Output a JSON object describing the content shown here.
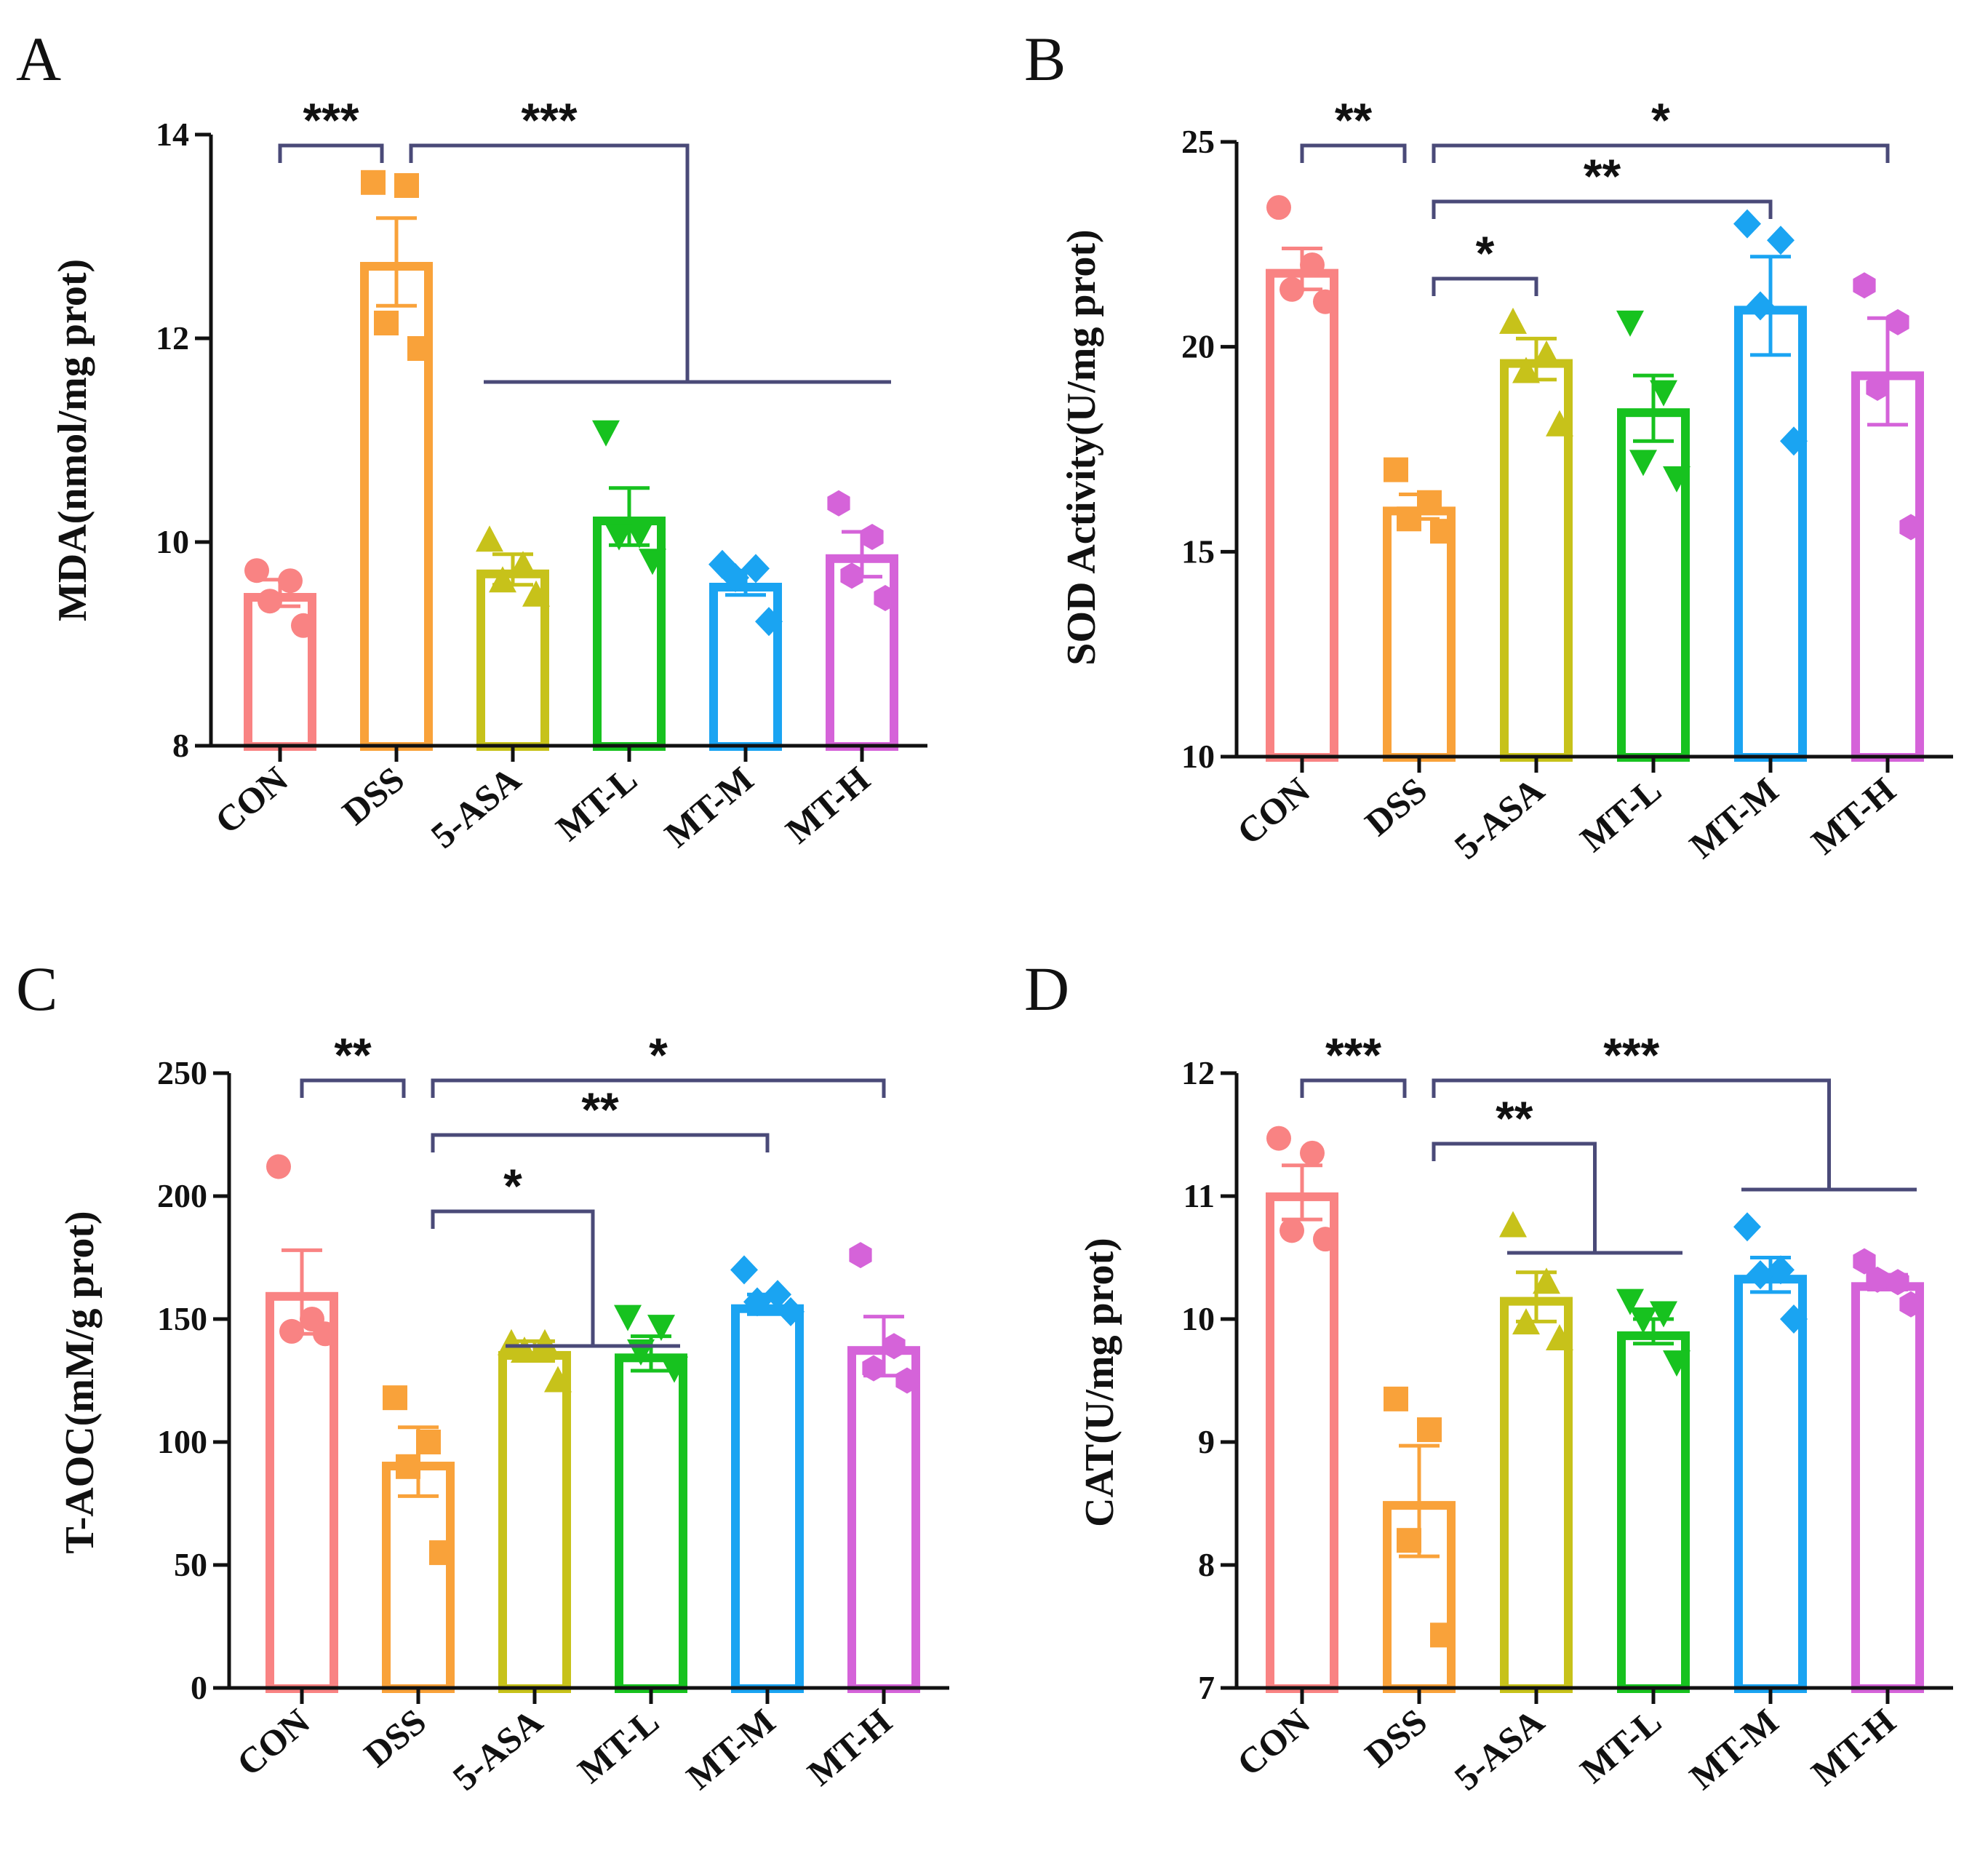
{
  "colors": {
    "CON": "#f98383",
    "DSS": "#f9a23a",
    "5-ASA": "#c7c21a",
    "MT-L": "#17c21f",
    "MT-M": "#1aa4f2",
    "MT-H": "#d563d9",
    "axis": "#111111",
    "bracket": "#4a4a78"
  },
  "chart_data": [
    {
      "type": "bar",
      "panel": "A",
      "ylabel": "MDA(nmol/mg prot)",
      "ylim": [
        8,
        14
      ],
      "yticks": [
        8,
        10,
        12,
        14
      ],
      "yticklabels": [
        "8",
        "10",
        "12",
        "14"
      ],
      "categories": [
        "CON",
        "DSS",
        "5-ASA",
        "MT-L",
        "MT-M",
        "MT-H"
      ],
      "markers": [
        "circle",
        "square",
        "triangle-up",
        "triangle-down",
        "diamond",
        "hexagon"
      ],
      "values": [
        9.5,
        12.75,
        9.73,
        10.25,
        9.6,
        9.88
      ],
      "sem": [
        0.13,
        0.43,
        0.15,
        0.28,
        0.12,
        0.22
      ],
      "points": [
        [
          9.72,
          9.62,
          9.42,
          9.18
        ],
        [
          13.53,
          13.5,
          12.15,
          11.9
        ],
        [
          10.02,
          9.77,
          9.62,
          9.48
        ],
        [
          11.08,
          10.08,
          10.06,
          9.82
        ],
        [
          9.78,
          9.74,
          9.65,
          9.22
        ],
        [
          10.38,
          10.05,
          9.67,
          9.45
        ]
      ],
      "significance": [
        {
          "label": "***",
          "from": 0,
          "to": [
            1
          ]
        },
        {
          "label": "***",
          "from": 1,
          "to": [
            2,
            3,
            4,
            5
          ]
        }
      ]
    },
    {
      "type": "bar",
      "panel": "B",
      "ylabel": "SOD Activity(U/mg prot)",
      "ylim": [
        10,
        25
      ],
      "yticks": [
        10,
        15,
        20,
        25
      ],
      "yticklabels": [
        "10",
        "15",
        "20",
        "25"
      ],
      "categories": [
        "CON",
        "DSS",
        "5-ASA",
        "MT-L",
        "MT-M",
        "MT-H"
      ],
      "markers": [
        "circle",
        "square",
        "triangle-up",
        "triangle-down",
        "diamond",
        "hexagon"
      ],
      "values": [
        21.9,
        16.1,
        19.7,
        18.5,
        21.0,
        19.4
      ],
      "sem": [
        0.5,
        0.3,
        0.5,
        0.8,
        1.2,
        1.3
      ],
      "points": [
        [
          23.4,
          22.0,
          21.4,
          21.1
        ],
        [
          17.0,
          16.2,
          15.8,
          15.5
        ],
        [
          20.6,
          19.8,
          19.4,
          18.1
        ],
        [
          20.6,
          18.9,
          17.2,
          16.8
        ],
        [
          23.0,
          22.6,
          21.0,
          17.7
        ],
        [
          21.5,
          20.6,
          19.0,
          15.6
        ]
      ],
      "significance": [
        {
          "label": "**",
          "from": 0,
          "to": [
            1
          ]
        },
        {
          "label": "*",
          "from": 1,
          "to": [
            5
          ]
        },
        {
          "label": "**",
          "from": 1,
          "to": [
            4
          ]
        },
        {
          "label": "*",
          "from": 1,
          "to": [
            2
          ]
        }
      ]
    },
    {
      "type": "bar",
      "panel": "C",
      "ylabel": "T-AOC(mM/g prot)",
      "ylim": [
        0,
        250
      ],
      "yticks": [
        0,
        50,
        100,
        150,
        200,
        250
      ],
      "yticklabels": [
        "0",
        "50",
        "100",
        "150",
        "200",
        "250"
      ],
      "categories": [
        "CON",
        "DSS",
        "5-ASA",
        "MT-L",
        "MT-M",
        "MT-H"
      ],
      "markers": [
        "circle",
        "square",
        "triangle-up",
        "triangle-down",
        "diamond",
        "hexagon"
      ],
      "values": [
        161,
        92,
        137,
        136,
        156,
        139
      ],
      "sem": [
        17,
        14,
        4,
        7,
        4,
        12
      ],
      "points": [
        [
          212,
          150,
          145,
          144
        ],
        [
          118,
          100,
          90,
          55
        ],
        [
          140,
          140,
          137,
          125
        ],
        [
          151,
          147,
          137,
          130
        ],
        [
          170,
          160,
          157,
          153
        ],
        [
          176,
          139,
          130,
          125
        ]
      ],
      "significance": [
        {
          "label": "**",
          "from": 0,
          "to": [
            1
          ]
        },
        {
          "label": "*",
          "from": 1,
          "to": [
            5
          ]
        },
        {
          "label": "**",
          "from": 1,
          "to": [
            4
          ]
        },
        {
          "label": "*",
          "from": 1,
          "to": [
            2,
            3
          ]
        }
      ]
    },
    {
      "type": "bar",
      "panel": "D",
      "ylabel": "CAT(U/mg prot)",
      "ylim": [
        7,
        12
      ],
      "yticks": [
        7,
        8,
        9,
        10,
        11,
        12
      ],
      "yticklabels": [
        "7",
        "8",
        "9",
        "10",
        "11",
        "12"
      ],
      "categories": [
        "CON",
        "DSS",
        "5-ASA",
        "MT-L",
        "MT-M",
        "MT-H"
      ],
      "markers": [
        "circle",
        "square",
        "triangle-up",
        "triangle-down",
        "diamond",
        "hexagon"
      ],
      "values": [
        11.03,
        8.52,
        10.18,
        9.9,
        10.36,
        10.3
      ],
      "sem": [
        0.22,
        0.45,
        0.2,
        0.1,
        0.14,
        0.06
      ],
      "points": [
        [
          11.47,
          11.35,
          10.72,
          10.65
        ],
        [
          9.35,
          9.1,
          8.2,
          7.43
        ],
        [
          10.76,
          10.3,
          9.97,
          9.84
        ],
        [
          10.15,
          10.05,
          10.0,
          9.65
        ],
        [
          10.75,
          10.4,
          10.36,
          10.0
        ],
        [
          10.47,
          10.3,
          10.32,
          10.12
        ]
      ],
      "significance": [
        {
          "label": "***",
          "from": 0,
          "to": [
            1
          ]
        },
        {
          "label": "***",
          "from": 1,
          "to": [
            4,
            5
          ]
        },
        {
          "label": "**",
          "from": 1,
          "to": [
            2,
            3
          ]
        }
      ]
    }
  ]
}
